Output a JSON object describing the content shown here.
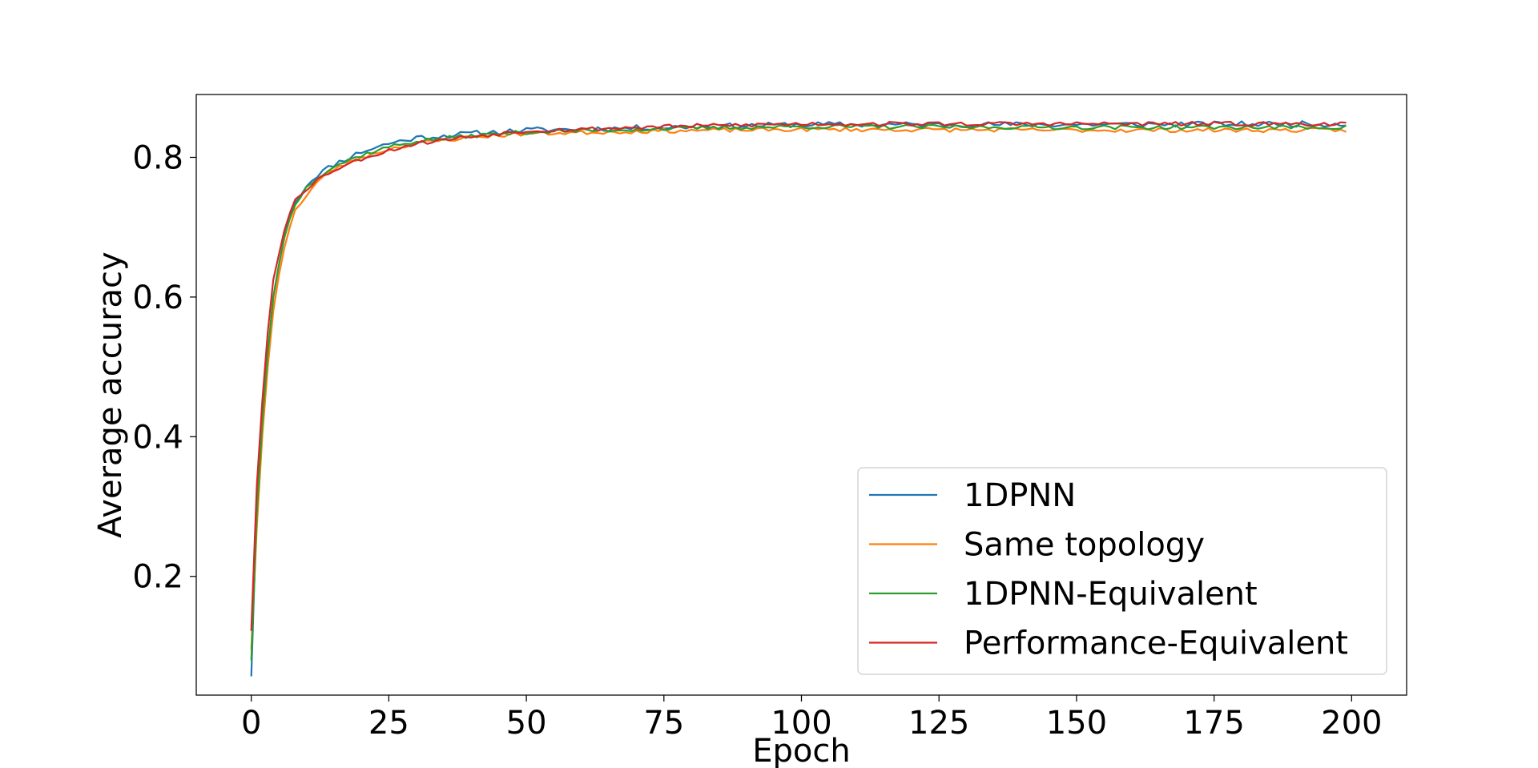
{
  "chart_data": {
    "type": "line",
    "xlabel": "Epoch",
    "ylabel": "Average accuracy",
    "xlim": [
      -10,
      210
    ],
    "ylim": [
      0.03,
      0.89
    ],
    "xticks": [
      0,
      25,
      50,
      75,
      100,
      125,
      150,
      175,
      200
    ],
    "xtick_labels": [
      "0",
      "25",
      "50",
      "75",
      "100",
      "125",
      "150",
      "175",
      "200"
    ],
    "yticks": [
      0.2,
      0.4,
      0.6,
      0.8
    ],
    "ytick_labels": [
      "0.2",
      "0.4",
      "0.6",
      "0.8"
    ],
    "grid": false,
    "legend_position": "lower-right",
    "x": {
      "start": 0,
      "end": 199,
      "step": 1
    },
    "series": [
      {
        "name": "1DPNN",
        "color": "#1f77b4",
        "start": 0.057,
        "early": [
          [
            1,
            0.3
          ],
          [
            2,
            0.43
          ],
          [
            3,
            0.52
          ],
          [
            4,
            0.6
          ],
          [
            5,
            0.645
          ],
          [
            6,
            0.685
          ],
          [
            7,
            0.715
          ],
          [
            8,
            0.735
          ],
          [
            10,
            0.76
          ],
          [
            12,
            0.775
          ],
          [
            15,
            0.79
          ],
          [
            20,
            0.808
          ],
          [
            25,
            0.82
          ],
          [
            30,
            0.828
          ],
          [
            40,
            0.834
          ],
          [
            50,
            0.839
          ],
          [
            75,
            0.843
          ],
          [
            100,
            0.847
          ],
          [
            150,
            0.847
          ],
          [
            199,
            0.848
          ]
        ],
        "noise": 0.004,
        "seed": 11
      },
      {
        "name": "Same topology",
        "color": "#ff7f0e",
        "start": 0.095,
        "early": [
          [
            1,
            0.27
          ],
          [
            2,
            0.4
          ],
          [
            3,
            0.5
          ],
          [
            4,
            0.58
          ],
          [
            5,
            0.63
          ],
          [
            6,
            0.67
          ],
          [
            7,
            0.7
          ],
          [
            8,
            0.725
          ],
          [
            10,
            0.745
          ],
          [
            12,
            0.765
          ],
          [
            15,
            0.783
          ],
          [
            20,
            0.8
          ],
          [
            25,
            0.812
          ],
          [
            30,
            0.82
          ],
          [
            40,
            0.829
          ],
          [
            50,
            0.834
          ],
          [
            75,
            0.838
          ],
          [
            100,
            0.84
          ],
          [
            150,
            0.839
          ],
          [
            199,
            0.839
          ]
        ],
        "noise": 0.003,
        "seed": 23
      },
      {
        "name": "1DPNN-Equivalent",
        "color": "#2ca02c",
        "start": 0.08,
        "early": [
          [
            1,
            0.29
          ],
          [
            2,
            0.42
          ],
          [
            3,
            0.52
          ],
          [
            4,
            0.6
          ],
          [
            5,
            0.645
          ],
          [
            6,
            0.685
          ],
          [
            7,
            0.712
          ],
          [
            8,
            0.732
          ],
          [
            10,
            0.757
          ],
          [
            12,
            0.772
          ],
          [
            15,
            0.787
          ],
          [
            20,
            0.803
          ],
          [
            25,
            0.815
          ],
          [
            30,
            0.823
          ],
          [
            40,
            0.831
          ],
          [
            50,
            0.836
          ],
          [
            75,
            0.841
          ],
          [
            100,
            0.844
          ],
          [
            150,
            0.843
          ],
          [
            199,
            0.843
          ]
        ],
        "noise": 0.003,
        "seed": 37
      },
      {
        "name": "Performance-Equivalent",
        "color": "#d62728",
        "start": 0.122,
        "early": [
          [
            1,
            0.33
          ],
          [
            2,
            0.45
          ],
          [
            3,
            0.55
          ],
          [
            4,
            0.625
          ],
          [
            5,
            0.66
          ],
          [
            6,
            0.695
          ],
          [
            7,
            0.72
          ],
          [
            8,
            0.74
          ],
          [
            10,
            0.755
          ],
          [
            12,
            0.768
          ],
          [
            15,
            0.782
          ],
          [
            20,
            0.798
          ],
          [
            25,
            0.81
          ],
          [
            30,
            0.82
          ],
          [
            40,
            0.83
          ],
          [
            50,
            0.838
          ],
          [
            75,
            0.844
          ],
          [
            100,
            0.848
          ],
          [
            150,
            0.848
          ],
          [
            199,
            0.848
          ]
        ],
        "noise": 0.003,
        "seed": 53
      }
    ]
  }
}
